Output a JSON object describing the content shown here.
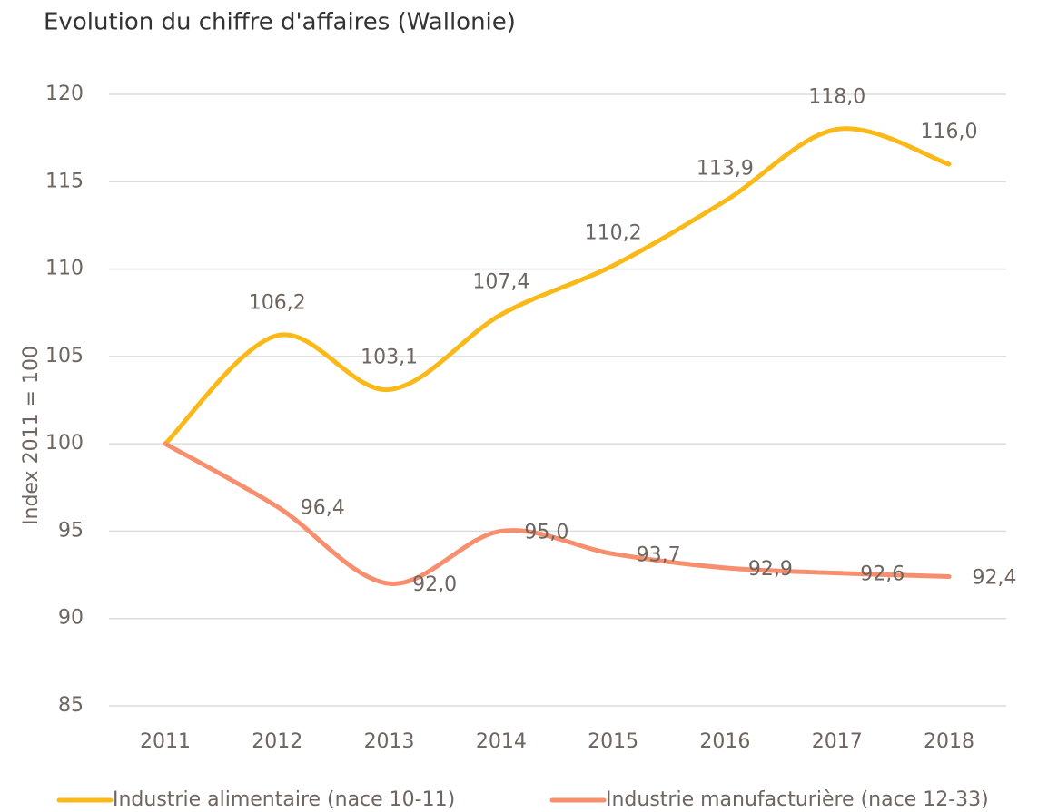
{
  "chart_data": {
    "type": "line",
    "title": "Evolution du chiffre d'affaires (Wallonie)",
    "y_label": "Index 2011 = 100",
    "categories": [
      "2011",
      "2012",
      "2013",
      "2014",
      "2015",
      "2016",
      "2017",
      "2018"
    ],
    "series": [
      {
        "name": "Industrie alimentaire (nace 10-11)",
        "color": "#f9b918",
        "values": [
          100,
          106.2,
          103.1,
          107.4,
          110.2,
          113.9,
          118.0,
          116.0
        ],
        "value_labels": [
          null,
          "106,2",
          "103,1",
          "107,4",
          "110,2",
          "113,9",
          "118,0",
          "116,0"
        ]
      },
      {
        "name": "Industrie manufacturière (nace 12-33)",
        "color": "#f78f6f",
        "values": [
          100,
          96.4,
          92.0,
          95.0,
          93.7,
          92.9,
          92.6,
          92.4
        ],
        "value_labels": [
          null,
          "96,4",
          "92,0",
          "95,0",
          "93,7",
          "92,9",
          "92,6",
          "92,4"
        ]
      }
    ],
    "ylim": [
      85,
      120
    ],
    "yticks": [
      85,
      90,
      95,
      100,
      105,
      110,
      115,
      120
    ],
    "grid": true,
    "legend": "bottom"
  }
}
